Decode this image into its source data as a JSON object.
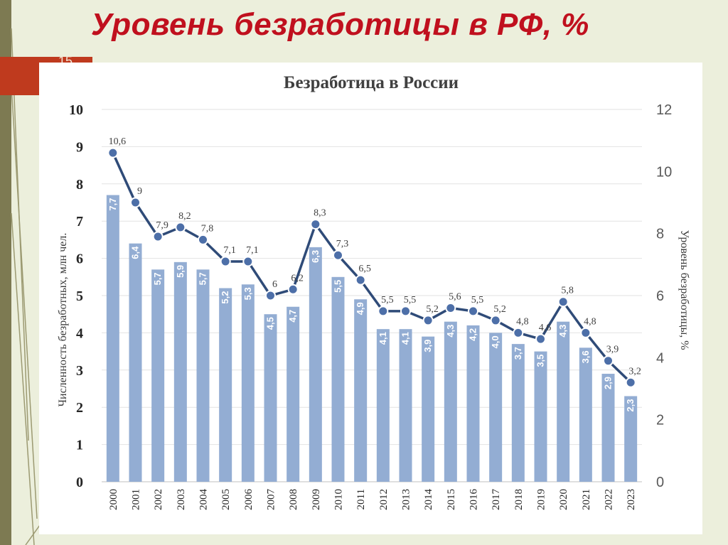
{
  "slide": {
    "title": "Уровень безработицы в РФ, %",
    "number": "15"
  },
  "colors": {
    "background": "#ecefdc",
    "title": "#c0101e",
    "accent_bar": "#bf3a1e",
    "bar": "#93add3",
    "line": "#2f4b78",
    "marker": "#4d6fa8"
  },
  "chart_data": {
    "type": "bar",
    "title": "Безработица в России",
    "categories": [
      "2000",
      "2001",
      "2002",
      "2003",
      "2004",
      "2005",
      "2006",
      "2007",
      "2008",
      "2009",
      "2010",
      "2011",
      "2012",
      "2013",
      "2014",
      "2015",
      "2016",
      "2017",
      "2018",
      "2019",
      "2020",
      "2021",
      "2022",
      "2023"
    ],
    "series": [
      {
        "type": "bar",
        "axis": "left",
        "values": [
          7.7,
          6.4,
          5.7,
          5.9,
          5.7,
          5.2,
          5.3,
          4.5,
          4.7,
          6.3,
          5.5,
          4.9,
          4.1,
          4.1,
          3.9,
          4.3,
          4.2,
          4.0,
          3.7,
          3.5,
          4.3,
          3.6,
          2.9,
          2.3
        ],
        "labels": [
          "7,7",
          "6,4",
          "5,7",
          "5,9",
          "5,7",
          "5,2",
          "5,3",
          "4,5",
          "4,7",
          "6,3",
          "5,5",
          "4,9",
          "4,1",
          "4,1",
          "3,9",
          "4,3",
          "4,2",
          "4,0",
          "3,7",
          "3,5",
          "4,3",
          "3,6",
          "2,9",
          "2,3"
        ]
      },
      {
        "type": "line",
        "axis": "right",
        "values": [
          10.6,
          9,
          7.9,
          8.2,
          7.8,
          7.1,
          7.1,
          6,
          6.2,
          8.3,
          7.3,
          6.5,
          5.5,
          5.5,
          5.2,
          5.6,
          5.5,
          5.2,
          4.8,
          4.6,
          5.8,
          4.8,
          3.9,
          3.2
        ],
        "labels": [
          "10,6",
          "9",
          "7,9",
          "8,2",
          "7,8",
          "7,1",
          "7,1",
          "6",
          "6,2",
          "8,3",
          "7,3",
          "6,5",
          "5,5",
          "5,5",
          "5,2",
          "5,6",
          "5,5",
          "5,2",
          "4,8",
          "4,6",
          "5,8",
          "4,8",
          "3,9",
          "3,2"
        ]
      }
    ],
    "ylabel": "Численность безработных, млн чел.",
    "ylim": [
      0,
      10
    ],
    "yticks": [
      "0",
      "1",
      "2",
      "3",
      "4",
      "5",
      "6",
      "7",
      "8",
      "9",
      "10"
    ],
    "y2label": "Уровень безработицы, %",
    "y2lim": [
      0,
      12
    ],
    "y2ticks": [
      "0",
      "2",
      "4",
      "6",
      "8",
      "10",
      "12"
    ],
    "grid": true,
    "legend": "none"
  }
}
